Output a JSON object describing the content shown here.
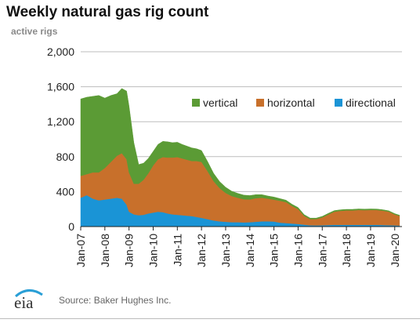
{
  "title": "Weekly natural gas rig count",
  "footer": {
    "logo_text": "eia",
    "source": "Source: Baker Hughes Inc."
  },
  "colors": {
    "vertical": "#5b9b35",
    "horizontal": "#c8702b",
    "directional": "#1a94d6",
    "grid": "#bdbdbd",
    "logo_arc": "#2a9fd6"
  },
  "chart_data": {
    "type": "area",
    "stacked": true,
    "title": "Weekly natural gas rig count",
    "ylabel": "active rigs",
    "xlabel": "",
    "ylim": [
      0,
      2000
    ],
    "yticks": [
      0,
      400,
      800,
      1200,
      1600,
      2000
    ],
    "ytick_labels": [
      "0",
      "400",
      "800",
      "1,200",
      "1,600",
      "2,000"
    ],
    "xticks": [
      2007,
      2008,
      2009,
      2010,
      2011,
      2012,
      2013,
      2014,
      2015,
      2016,
      2017,
      2018,
      2019,
      2020
    ],
    "xtick_labels": [
      "Jan-07",
      "Jan-08",
      "Jan-09",
      "Jan-10",
      "Jan-11",
      "Jan-12",
      "Jan-13",
      "Jan-14",
      "Jan-15",
      "Jan-16",
      "Jan-17",
      "Jan-18",
      "Jan-19",
      "Jan-20"
    ],
    "xlim": [
      2007,
      2020.3
    ],
    "grid": true,
    "legend_position": "top-right",
    "x": [
      2007.0,
      2007.25,
      2007.5,
      2007.75,
      2008.0,
      2008.25,
      2008.5,
      2008.7,
      2008.9,
      2009.0,
      2009.2,
      2009.4,
      2009.6,
      2009.8,
      2010.0,
      2010.2,
      2010.4,
      2010.6,
      2010.8,
      2011.0,
      2011.2,
      2011.4,
      2011.6,
      2011.8,
      2012.0,
      2012.25,
      2012.5,
      2012.75,
      2013.0,
      2013.25,
      2013.5,
      2013.75,
      2014.0,
      2014.25,
      2014.5,
      2014.75,
      2015.0,
      2015.25,
      2015.5,
      2015.75,
      2016.0,
      2016.25,
      2016.5,
      2016.75,
      2017.0,
      2017.25,
      2017.5,
      2017.75,
      2018.0,
      2018.25,
      2018.5,
      2018.75,
      2019.0,
      2019.25,
      2019.5,
      2019.75,
      2020.0,
      2020.2
    ],
    "series": [
      {
        "name": "directional",
        "values": [
          330,
          360,
          320,
          300,
          310,
          320,
          330,
          320,
          250,
          170,
          140,
          130,
          135,
          150,
          160,
          170,
          165,
          150,
          140,
          135,
          130,
          125,
          120,
          110,
          100,
          85,
          70,
          60,
          55,
          50,
          50,
          48,
          50,
          55,
          60,
          60,
          58,
          45,
          40,
          35,
          30,
          22,
          15,
          14,
          15,
          18,
          20,
          20,
          20,
          20,
          20,
          20,
          20,
          20,
          18,
          16,
          14,
          12
        ]
      },
      {
        "name": "horizontal",
        "values": [
          250,
          240,
          300,
          320,
          360,
          420,
          480,
          520,
          520,
          450,
          350,
          360,
          400,
          460,
          540,
          600,
          630,
          640,
          650,
          660,
          650,
          640,
          630,
          640,
          640,
          550,
          450,
          380,
          330,
          300,
          280,
          265,
          260,
          270,
          270,
          260,
          250,
          250,
          240,
          200,
          170,
          100,
          70,
          72,
          90,
          120,
          150,
          160,
          165,
          165,
          170,
          168,
          170,
          170,
          165,
          155,
          125,
          110
        ]
      },
      {
        "name": "vertical",
        "values": [
          880,
          880,
          870,
          880,
          800,
          760,
          710,
          740,
          780,
          760,
          470,
          220,
          190,
          170,
          160,
          170,
          180,
          180,
          170,
          170,
          160,
          155,
          150,
          140,
          130,
          110,
          90,
          75,
          65,
          55,
          50,
          47,
          45,
          40,
          35,
          30,
          30,
          25,
          22,
          20,
          18,
          15,
          12,
          11,
          12,
          13,
          13,
          12,
          12,
          12,
          12,
          12,
          12,
          11,
          10,
          10,
          9,
          8
        ]
      }
    ],
    "legend_order": [
      "vertical",
      "horizontal",
      "directional"
    ]
  }
}
